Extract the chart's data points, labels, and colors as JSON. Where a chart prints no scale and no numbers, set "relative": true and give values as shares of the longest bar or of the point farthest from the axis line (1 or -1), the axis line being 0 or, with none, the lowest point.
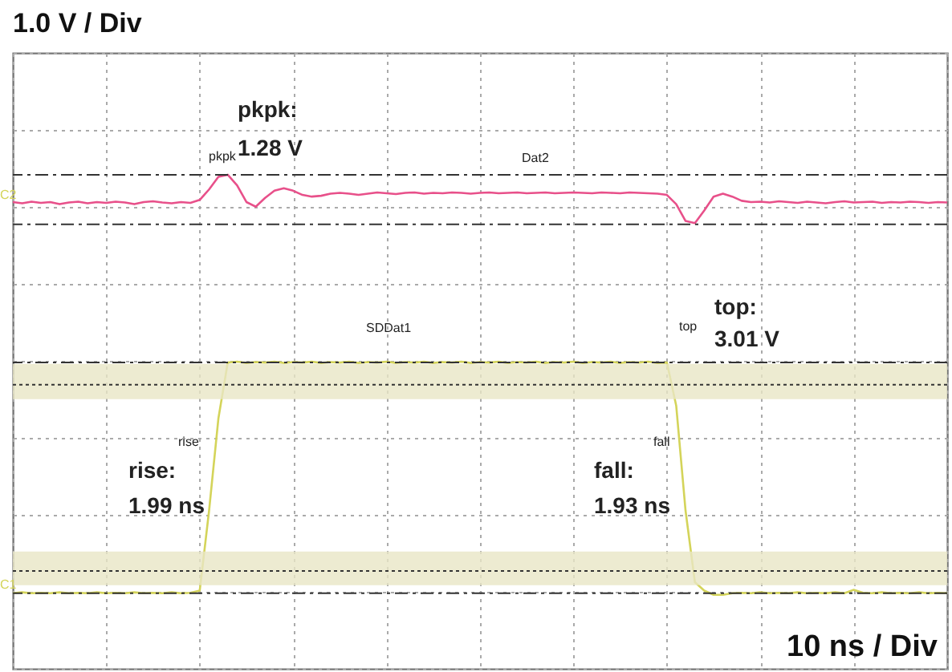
{
  "chart_data": {
    "type": "line",
    "title": "1.0 V / Div",
    "xlabel": "10 ns / Div",
    "relative": true,
    "grid": true,
    "legend": false,
    "categories": [
      null,
      null,
      null,
      null,
      null,
      null,
      null,
      null,
      null,
      null,
      null,
      null,
      null,
      null,
      null,
      null,
      null,
      null,
      null,
      null,
      null,
      null,
      null,
      null,
      null,
      null,
      null,
      null,
      null,
      null,
      null,
      null,
      null,
      null,
      null,
      null,
      null,
      null,
      null,
      null,
      null,
      null,
      null,
      null,
      null,
      null,
      null,
      null,
      null,
      null,
      null,
      null,
      null,
      null,
      null,
      null,
      null,
      null,
      null,
      null,
      null,
      null,
      null,
      null,
      null,
      null,
      null,
      null,
      null,
      null,
      null,
      null,
      null,
      null,
      null,
      null,
      null,
      null,
      null,
      null,
      null,
      null,
      null,
      null,
      null,
      null,
      null,
      null,
      null,
      null,
      null,
      null,
      null,
      null,
      null,
      null,
      null,
      null,
      null,
      null,
      null
    ],
    "series": [
      {
        "name": "Dat2",
        "color": "#e8508a",
        "values": [
          0.935,
          0.932,
          0.936,
          0.933,
          0.935,
          0.93,
          0.934,
          0.936,
          0.932,
          0.935,
          0.933,
          0.936,
          0.934,
          0.93,
          0.935,
          0.937,
          0.934,
          0.932,
          0.935,
          0.933,
          0.94,
          0.965,
          0.995,
          1.0,
          0.975,
          0.935,
          0.924,
          0.945,
          0.962,
          0.968,
          0.962,
          0.952,
          0.948,
          0.95,
          0.955,
          0.957,
          0.955,
          0.952,
          0.955,
          0.958,
          0.956,
          0.954,
          0.957,
          0.958,
          0.955,
          0.957,
          0.956,
          0.958,
          0.957,
          0.955,
          0.957,
          0.958,
          0.956,
          0.957,
          0.958,
          0.956,
          0.957,
          0.958,
          0.956,
          0.957,
          0.958,
          0.957,
          0.956,
          0.958,
          0.957,
          0.956,
          0.958,
          0.957,
          0.956,
          0.955,
          0.952,
          0.93,
          0.89,
          0.885,
          0.915,
          0.948,
          0.955,
          0.948,
          0.938,
          0.935,
          0.936,
          0.934,
          0.937,
          0.935,
          0.933,
          0.936,
          0.934,
          0.932,
          0.935,
          0.937,
          0.934,
          0.935,
          0.936,
          0.933,
          0.935,
          0.934,
          0.936,
          0.935,
          0.933,
          0.935,
          0.934
        ]
      },
      {
        "name": "SDDat1",
        "color": "#d4d45a",
        "values": [
          0.004,
          0.006,
          0.004,
          0.005,
          0.004,
          0.006,
          0.004,
          0.005,
          0.004,
          0.006,
          0.004,
          0.005,
          0.004,
          0.006,
          0.004,
          0.005,
          0.004,
          0.006,
          0.004,
          0.005,
          0.01,
          0.2,
          0.42,
          0.553,
          0.555,
          0.552,
          0.554,
          0.553,
          0.555,
          0.552,
          0.554,
          0.553,
          0.555,
          0.552,
          0.554,
          0.553,
          0.555,
          0.552,
          0.554,
          0.553,
          0.555,
          0.552,
          0.554,
          0.553,
          0.555,
          0.552,
          0.554,
          0.553,
          0.555,
          0.552,
          0.554,
          0.553,
          0.555,
          0.552,
          0.554,
          0.553,
          0.555,
          0.552,
          0.554,
          0.553,
          0.555,
          0.552,
          0.554,
          0.553,
          0.555,
          0.552,
          0.554,
          0.553,
          0.555,
          0.552,
          0.553,
          0.45,
          0.2,
          0.03,
          0.01,
          0.0,
          0.0,
          0.004,
          0.005,
          0.004,
          0.006,
          0.004,
          0.005,
          0.004,
          0.006,
          0.004,
          0.005,
          0.004,
          0.006,
          0.004,
          0.012,
          0.005,
          0.004,
          0.006,
          0.004,
          0.005,
          0.004,
          0.006,
          0.004,
          0.005,
          0.004
        ]
      }
    ],
    "ref_lines": [
      {
        "axis": "y",
        "value": 1.0,
        "color": "#333333"
      },
      {
        "axis": "y",
        "value": 0.882,
        "color": "#333333"
      },
      {
        "axis": "y",
        "value": 0.553,
        "color": "#333333"
      },
      {
        "axis": "y",
        "value": 0.004,
        "color": "#333333"
      },
      {
        "axis": "y",
        "value": 0.5,
        "color": "#333333",
        "line_style": "dotted"
      },
      {
        "axis": "y",
        "value": 0.057,
        "color": "#333333",
        "line_style": "dotted"
      }
    ],
    "bands": [
      {
        "axis": "y",
        "from": 0.466,
        "to": 0.55,
        "color": "#e9e6c6"
      },
      {
        "axis": "y",
        "from": 0.023,
        "to": 0.103,
        "color": "#e9e6c6"
      }
    ],
    "annotations": [
      "pkpk",
      "pkpk:",
      "1.28 V",
      "rise",
      "rise:",
      "1.99 ns",
      "fall",
      "fall:",
      "1.93 ns",
      "top",
      "top:",
      "3.01 V",
      "C2",
      "C1"
    ]
  }
}
